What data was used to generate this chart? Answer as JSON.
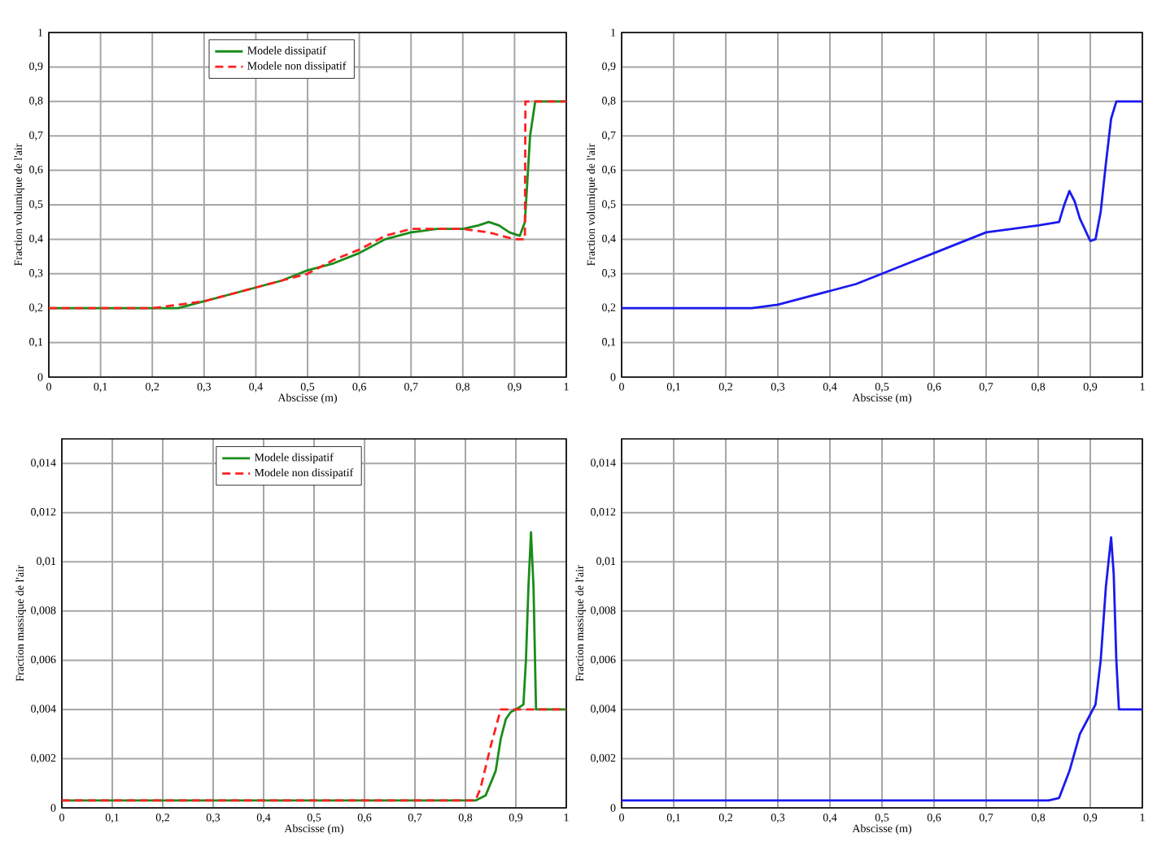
{
  "chart_data": [
    {
      "type": "line",
      "xlabel": "Abscisse (m)",
      "ylabel": "Fraction volumique de l'air",
      "xlim": [
        0,
        1
      ],
      "ylim": [
        0,
        1
      ],
      "xticks": [
        0,
        {
          "value": 0.1,
          "label": "0,1"
        },
        {
          "value": 0.2,
          "label": "0,2"
        },
        {
          "value": 0.3,
          "label": "0,3"
        },
        {
          "value": 0.4,
          "label": "0,4"
        },
        {
          "value": 0.5,
          "label": "0,5"
        },
        {
          "value": 0.6,
          "label": "0,6"
        },
        {
          "value": 0.7,
          "label": "0,7"
        },
        {
          "value": 0.8,
          "label": "0,8"
        },
        {
          "value": 0.9,
          "label": "0,9"
        },
        1
      ],
      "yticks": [
        0,
        {
          "value": 0.1,
          "label": "0,1"
        },
        {
          "value": 0.2,
          "label": "0,2"
        },
        {
          "value": 0.3,
          "label": "0,3"
        },
        {
          "value": 0.4,
          "label": "0,4"
        },
        {
          "value": 0.5,
          "label": "0,5"
        },
        {
          "value": 0.6,
          "label": "0,6"
        },
        {
          "value": 0.7,
          "label": "0,7"
        },
        {
          "value": 0.8,
          "label": "0,8"
        },
        {
          "value": 0.9,
          "label": "0,9"
        },
        1
      ],
      "grid": true,
      "legend": "top",
      "series": [
        {
          "name": "Modele dissipatif",
          "color": "#1a8c1a",
          "line_style": "solid",
          "x": [
            0,
            0.2,
            0.25,
            0.3,
            0.35,
            0.4,
            0.45,
            0.5,
            0.55,
            0.6,
            0.65,
            0.7,
            0.75,
            0.8,
            0.83,
            0.85,
            0.87,
            0.89,
            0.91,
            0.92,
            0.93,
            0.94,
            1
          ],
          "values": [
            0.2,
            0.2,
            0.2,
            0.22,
            0.24,
            0.26,
            0.28,
            0.31,
            0.33,
            0.36,
            0.4,
            0.42,
            0.43,
            0.43,
            0.44,
            0.45,
            0.44,
            0.42,
            0.41,
            0.45,
            0.7,
            0.8,
            0.8
          ]
        },
        {
          "name": "Modele non dissipatif",
          "color": "#ff2020",
          "line_style": "dashed",
          "x": [
            0,
            0.2,
            0.25,
            0.3,
            0.35,
            0.4,
            0.45,
            0.5,
            0.55,
            0.6,
            0.65,
            0.7,
            0.8,
            0.85,
            0.9,
            0.92,
            0.921,
            1
          ],
          "values": [
            0.2,
            0.2,
            0.21,
            0.22,
            0.24,
            0.26,
            0.28,
            0.3,
            0.34,
            0.37,
            0.41,
            0.43,
            0.43,
            0.42,
            0.4,
            0.4,
            0.8,
            0.8
          ]
        }
      ]
    },
    {
      "type": "line",
      "xlabel": "Abscisse (m)",
      "ylabel": "Fraction volumique de l'air",
      "xlim": [
        0,
        1
      ],
      "ylim": [
        0,
        1
      ],
      "xticks": [
        0,
        {
          "value": 0.1,
          "label": "0,1"
        },
        {
          "value": 0.2,
          "label": "0,2"
        },
        {
          "value": 0.3,
          "label": "0,3"
        },
        {
          "value": 0.4,
          "label": "0,4"
        },
        {
          "value": 0.5,
          "label": "0,5"
        },
        {
          "value": 0.6,
          "label": "0,6"
        },
        {
          "value": 0.7,
          "label": "0,7"
        },
        {
          "value": 0.8,
          "label": "0,8"
        },
        {
          "value": 0.9,
          "label": "0,9"
        },
        1
      ],
      "yticks": [
        0,
        {
          "value": 0.1,
          "label": "0,1"
        },
        {
          "value": 0.2,
          "label": "0,2"
        },
        {
          "value": 0.3,
          "label": "0,3"
        },
        {
          "value": 0.4,
          "label": "0,4"
        },
        {
          "value": 0.5,
          "label": "0,5"
        },
        {
          "value": 0.6,
          "label": "0,6"
        },
        {
          "value": 0.7,
          "label": "0,7"
        },
        {
          "value": 0.8,
          "label": "0,8"
        },
        {
          "value": 0.9,
          "label": "0,9"
        },
        1
      ],
      "grid": true,
      "series": [
        {
          "color": "#1a1aee",
          "line_style": "solid",
          "x": [
            0,
            0.2,
            0.25,
            0.3,
            0.35,
            0.4,
            0.45,
            0.5,
            0.55,
            0.6,
            0.65,
            0.7,
            0.75,
            0.8,
            0.84,
            0.85,
            0.86,
            0.87,
            0.88,
            0.9,
            0.91,
            0.92,
            0.93,
            0.94,
            0.95,
            1
          ],
          "values": [
            0.2,
            0.2,
            0.2,
            0.21,
            0.23,
            0.25,
            0.27,
            0.3,
            0.33,
            0.36,
            0.39,
            0.42,
            0.43,
            0.44,
            0.45,
            0.5,
            0.54,
            0.51,
            0.46,
            0.395,
            0.4,
            0.48,
            0.62,
            0.75,
            0.8,
            0.8
          ]
        }
      ]
    },
    {
      "type": "line",
      "xlabel": "Abscisse (m)",
      "ylabel": "Fraction massique de l'air",
      "xlim": [
        0,
        1
      ],
      "ylim": [
        0,
        0.015
      ],
      "xticks": [
        0,
        {
          "value": 0.1,
          "label": "0,1"
        },
        {
          "value": 0.2,
          "label": "0,2"
        },
        {
          "value": 0.3,
          "label": "0,3"
        },
        {
          "value": 0.4,
          "label": "0,4"
        },
        {
          "value": 0.5,
          "label": "0,5"
        },
        {
          "value": 0.6,
          "label": "0,6"
        },
        {
          "value": 0.7,
          "label": "0,7"
        },
        {
          "value": 0.8,
          "label": "0,8"
        },
        {
          "value": 0.9,
          "label": "0,9"
        },
        1
      ],
      "yticks": [
        0,
        {
          "value": 0.002,
          "label": "0,002"
        },
        {
          "value": 0.004,
          "label": "0,004"
        },
        {
          "value": 0.006,
          "label": "0,006"
        },
        {
          "value": 0.008,
          "label": "0,008"
        },
        {
          "value": 0.01,
          "label": "0,01"
        },
        {
          "value": 0.012,
          "label": "0,012"
        },
        {
          "value": 0.014,
          "label": "0,014"
        }
      ],
      "grid": true,
      "legend": "top",
      "series": [
        {
          "name": "Modele dissipatif",
          "color": "#1a8c1a",
          "line_style": "solid",
          "x": [
            0,
            0.82,
            0.84,
            0.86,
            0.87,
            0.88,
            0.89,
            0.9,
            0.915,
            0.92,
            0.925,
            0.93,
            0.935,
            0.94,
            1
          ],
          "values": [
            0.0003,
            0.0003,
            0.0005,
            0.0015,
            0.0028,
            0.0036,
            0.0039,
            0.004,
            0.0042,
            0.006,
            0.009,
            0.0112,
            0.009,
            0.004,
            0.004
          ]
        },
        {
          "name": "Modele non dissipatif",
          "color": "#ff2020",
          "line_style": "dashed",
          "x": [
            0,
            0.82,
            0.83,
            0.85,
            0.87,
            1
          ],
          "values": [
            0.0003,
            0.0003,
            0.0008,
            0.0025,
            0.004,
            0.004
          ]
        }
      ]
    },
    {
      "type": "line",
      "xlabel": "Abscisse (m)",
      "ylabel": "Fraction massique de l'air",
      "xlim": [
        0,
        1
      ],
      "ylim": [
        0,
        0.015
      ],
      "xticks": [
        0,
        {
          "value": 0.1,
          "label": "0,1"
        },
        {
          "value": 0.2,
          "label": "0,2"
        },
        {
          "value": 0.3,
          "label": "0,3"
        },
        {
          "value": 0.4,
          "label": "0,4"
        },
        {
          "value": 0.5,
          "label": "0,5"
        },
        {
          "value": 0.6,
          "label": "0,6"
        },
        {
          "value": 0.7,
          "label": "0,7"
        },
        {
          "value": 0.8,
          "label": "0,8"
        },
        {
          "value": 0.9,
          "label": "0,9"
        },
        1
      ],
      "yticks": [
        0,
        {
          "value": 0.002,
          "label": "0,002"
        },
        {
          "value": 0.004,
          "label": "0,004"
        },
        {
          "value": 0.006,
          "label": "0,006"
        },
        {
          "value": 0.008,
          "label": "0,008"
        },
        {
          "value": 0.01,
          "label": "0,01"
        },
        {
          "value": 0.012,
          "label": "0,012"
        },
        {
          "value": 0.014,
          "label": "0,014"
        }
      ],
      "grid": true,
      "series": [
        {
          "color": "#1a1aee",
          "line_style": "solid",
          "x": [
            0,
            0.82,
            0.84,
            0.86,
            0.88,
            0.9,
            0.91,
            0.92,
            0.93,
            0.94,
            0.945,
            0.95,
            0.955,
            1
          ],
          "values": [
            0.0003,
            0.0003,
            0.0004,
            0.0015,
            0.003,
            0.0038,
            0.0042,
            0.006,
            0.009,
            0.011,
            0.0095,
            0.006,
            0.004,
            0.004
          ]
        }
      ]
    }
  ]
}
